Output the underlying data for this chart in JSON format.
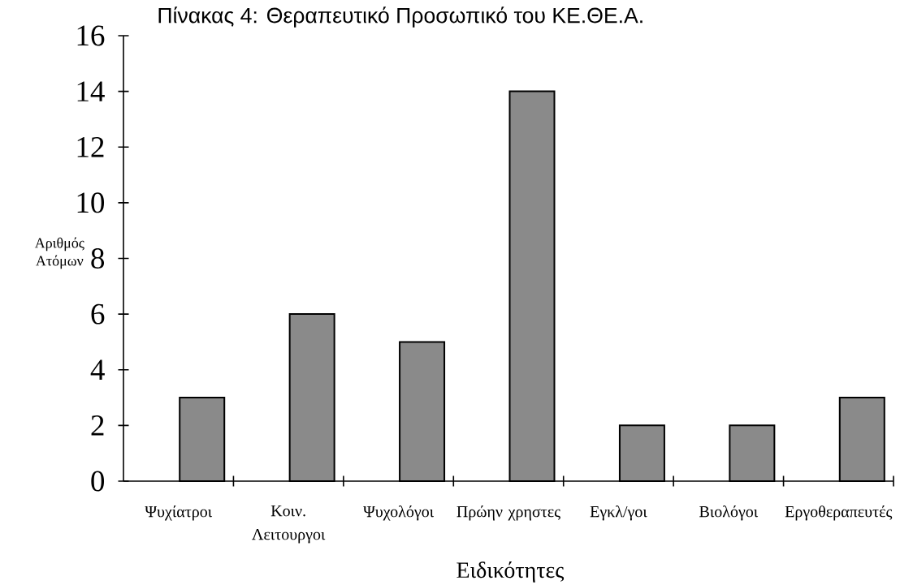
{
  "chart_data": {
    "type": "bar",
    "title": "Πίνακας 4: Θεραπευτικό Προσωπικό του ΚΕ.ΘΕ.Α.",
    "xlabel": "Ειδικότητες",
    "ylabel": "Αριθμός Ατόμων",
    "categories": [
      "Ψυχίατροι",
      "Κοιν. Λειτουργοι",
      "Ψυχολόγοι",
      "Πρώην χρηστες",
      "Εγκλ/γοι",
      "Βιολόγοι",
      "Εργοθεραπευτές"
    ],
    "values": [
      3,
      6,
      5,
      14,
      2,
      2,
      3
    ],
    "color": "#8a8a8a",
    "ylim": [
      0,
      16
    ],
    "yticks": [
      0,
      2,
      4,
      6,
      8,
      10,
      12,
      14,
      16
    ]
  }
}
